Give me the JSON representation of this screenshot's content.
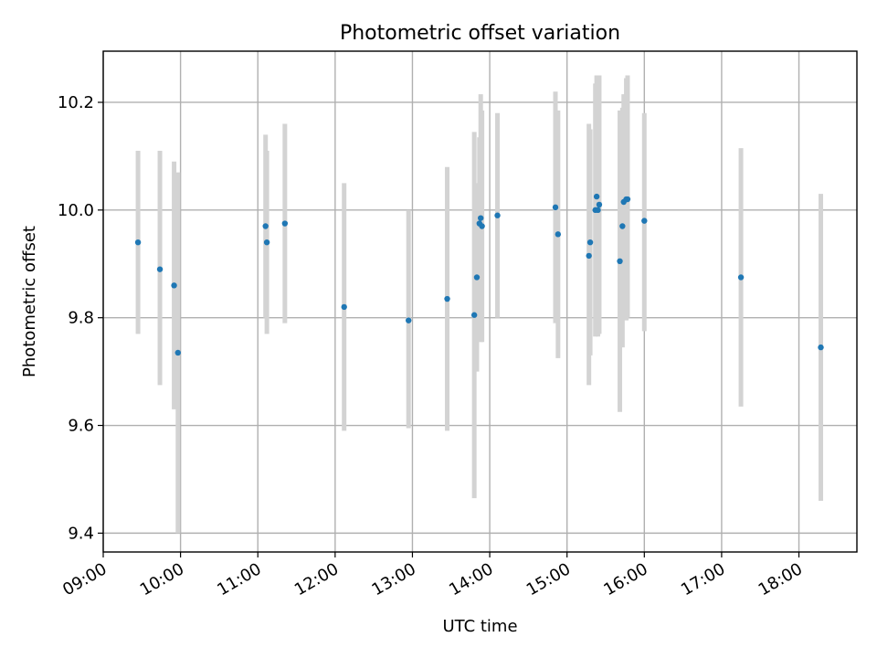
{
  "chart_data": {
    "type": "scatter",
    "title": "Photometric offset variation",
    "xlabel": "UTC time",
    "ylabel": "Photometric offset",
    "x_is_time": true,
    "xlim": [
      "09:00",
      "18:45"
    ],
    "ylim": [
      9.365,
      10.295
    ],
    "x_ticks": [
      "09:00",
      "10:00",
      "11:00",
      "12:00",
      "13:00",
      "14:00",
      "15:00",
      "16:00",
      "17:00",
      "18:00"
    ],
    "y_ticks": [
      9.4,
      9.6,
      9.8,
      10.0,
      10.2
    ],
    "y_tick_labels": [
      "9.4",
      "9.6",
      "9.8",
      "10.0",
      "10.2"
    ],
    "grid": true,
    "marker_color": "#1f77b4",
    "errorbar_color": "#d3d3d3",
    "series": [
      {
        "points": [
          {
            "t": "09:27",
            "y": 9.94,
            "lo": 9.77,
            "hi": 10.11
          },
          {
            "t": "09:44",
            "y": 9.89,
            "lo": 9.675,
            "hi": 10.11
          },
          {
            "t": "09:55",
            "y": 9.86,
            "lo": 9.63,
            "hi": 10.09
          },
          {
            "t": "09:58",
            "y": 9.735,
            "lo": 9.4,
            "hi": 10.07
          },
          {
            "t": "11:06",
            "y": 9.97,
            "lo": 9.8,
            "hi": 10.14
          },
          {
            "t": "11:07",
            "y": 9.94,
            "lo": 9.77,
            "hi": 10.11
          },
          {
            "t": "11:21",
            "y": 9.975,
            "lo": 9.79,
            "hi": 10.16
          },
          {
            "t": "12:07",
            "y": 9.82,
            "lo": 9.59,
            "hi": 10.05
          },
          {
            "t": "12:57",
            "y": 9.795,
            "lo": 9.595,
            "hi": 10.0
          },
          {
            "t": "13:27",
            "y": 9.835,
            "lo": 9.59,
            "hi": 10.08
          },
          {
            "t": "13:48",
            "y": 9.805,
            "lo": 9.465,
            "hi": 10.145
          },
          {
            "t": "13:50",
            "y": 9.875,
            "lo": 9.7,
            "hi": 10.05
          },
          {
            "t": "13:52",
            "y": 9.975,
            "lo": 9.81,
            "hi": 10.135
          },
          {
            "t": "13:53",
            "y": 9.985,
            "lo": 9.755,
            "hi": 10.215
          },
          {
            "t": "13:54",
            "y": 9.97,
            "lo": 9.755,
            "hi": 10.185
          },
          {
            "t": "14:06",
            "y": 9.99,
            "lo": 9.8,
            "hi": 10.18
          },
          {
            "t": "14:51",
            "y": 10.005,
            "lo": 9.79,
            "hi": 10.22
          },
          {
            "t": "14:53",
            "y": 9.955,
            "lo": 9.725,
            "hi": 10.185
          },
          {
            "t": "15:17",
            "y": 9.915,
            "lo": 9.675,
            "hi": 10.16
          },
          {
            "t": "15:18",
            "y": 9.94,
            "lo": 9.73,
            "hi": 10.15
          },
          {
            "t": "15:22",
            "y": 10.0,
            "lo": 9.765,
            "hi": 10.235
          },
          {
            "t": "15:23",
            "y": 10.025,
            "lo": 9.8,
            "hi": 10.25
          },
          {
            "t": "15:24",
            "y": 10.0,
            "lo": 9.765,
            "hi": 10.235
          },
          {
            "t": "15:25",
            "y": 10.01,
            "lo": 9.77,
            "hi": 10.25
          },
          {
            "t": "15:41",
            "y": 9.905,
            "lo": 9.625,
            "hi": 10.185
          },
          {
            "t": "15:43",
            "y": 9.97,
            "lo": 9.745,
            "hi": 10.19
          },
          {
            "t": "15:44",
            "y": 10.015,
            "lo": 9.8,
            "hi": 10.215
          },
          {
            "t": "15:46",
            "y": 10.02,
            "lo": 9.795,
            "hi": 10.245
          },
          {
            "t": "15:47",
            "y": 10.02,
            "lo": 9.8,
            "hi": 10.25
          },
          {
            "t": "16:00",
            "y": 9.98,
            "lo": 9.775,
            "hi": 10.18
          },
          {
            "t": "17:15",
            "y": 9.875,
            "lo": 9.635,
            "hi": 10.115
          },
          {
            "t": "18:17",
            "y": 9.745,
            "lo": 9.46,
            "hi": 10.03
          }
        ]
      }
    ]
  }
}
